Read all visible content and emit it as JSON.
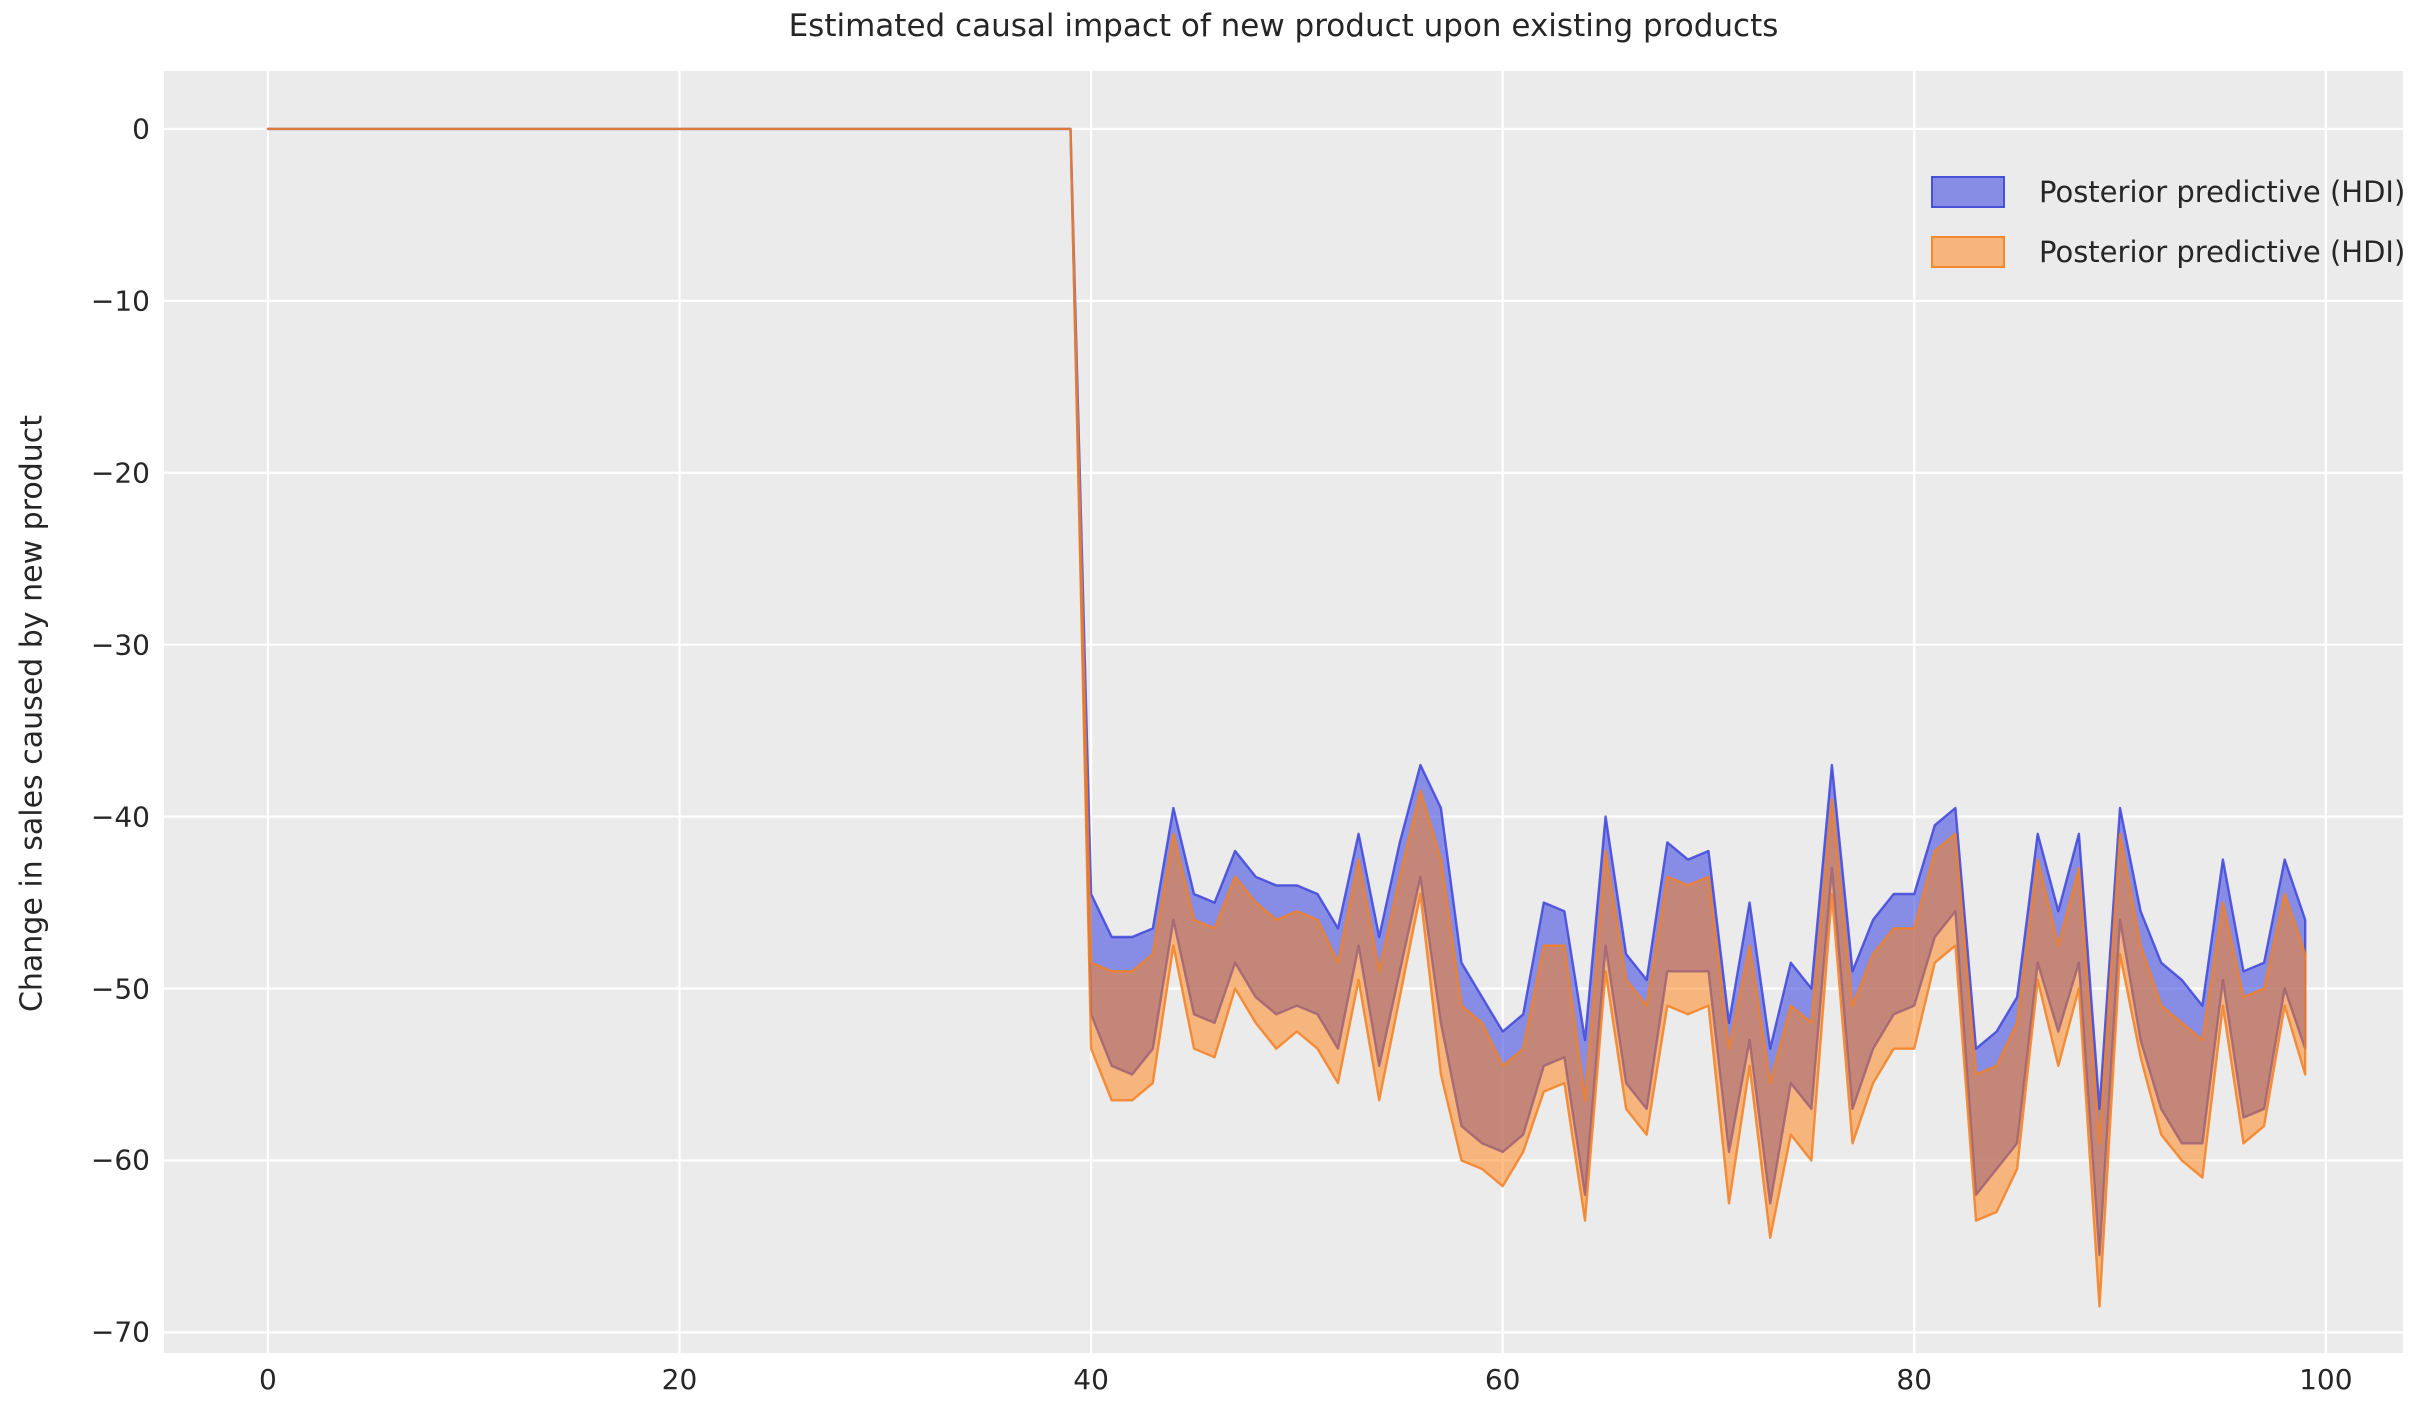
{
  "chart_data": {
    "type": "area",
    "title": "Estimated causal impact of new product upon existing products",
    "ylabel": "Change in sales caused by new product",
    "xlabel": "",
    "grid": true,
    "legend_position": "upper right",
    "legend": [
      {
        "label": "Posterior predictive (HDI)",
        "series": "blue_hdi"
      },
      {
        "label": "Posterior predictive (HDI)",
        "series": "orange_hdi"
      }
    ],
    "colors": {
      "axes_background": "#ebebeb",
      "grid": "#ffffff",
      "text": "#262626",
      "blue_fill": "rgba(74,82,224,0.62)",
      "blue_edge": "rgba(62,69,218,0.85)",
      "orange_fill": "rgba(255,127,14,0.5)",
      "orange_edge": "rgba(243,128,35,0.85)"
    },
    "xlim": [
      -5.05,
      103.75
    ],
    "ylim": [
      -71.2,
      3.37
    ],
    "x_ticks": [
      {
        "value": 0,
        "label": "0"
      },
      {
        "value": 20,
        "label": "20"
      },
      {
        "value": 40,
        "label": "40"
      },
      {
        "value": 60,
        "label": "60"
      },
      {
        "value": 80,
        "label": "80"
      },
      {
        "value": 100,
        "label": "100"
      }
    ],
    "y_ticks": [
      {
        "value": 0,
        "label": "0"
      },
      {
        "value": -10,
        "label": "−10"
      },
      {
        "value": -20,
        "label": "−20"
      },
      {
        "value": -30,
        "label": "−30"
      },
      {
        "value": -40,
        "label": "−40"
      },
      {
        "value": -50,
        "label": "−50"
      },
      {
        "value": -60,
        "label": "−60"
      },
      {
        "value": -70,
        "label": "−70"
      }
    ],
    "pre_period": {
      "x_start": 0,
      "x_end": 39,
      "value": 0
    },
    "post_period": {
      "x_start": 40,
      "x": [
        40,
        41,
        42,
        43,
        44,
        45,
        46,
        47,
        48,
        49,
        50,
        51,
        52,
        53,
        54,
        55,
        56,
        57,
        58,
        59,
        60,
        61,
        62,
        63,
        64,
        65,
        66,
        67,
        68,
        69,
        70,
        71,
        72,
        73,
        74,
        75,
        76,
        77,
        78,
        79,
        80,
        81,
        82,
        83,
        84,
        85,
        86,
        87,
        88,
        89,
        90,
        91,
        92,
        93,
        94,
        95,
        96,
        97,
        98,
        99
      ],
      "blue_hdi_upper": [
        -44.5,
        -47,
        -47,
        -46.5,
        -39.5,
        -44.5,
        -45,
        -42,
        -43.5,
        -44,
        -44,
        -44.5,
        -46.5,
        -41,
        -47,
        -41.5,
        -37,
        -39.5,
        -48.5,
        -50.5,
        -52.5,
        -51.5,
        -45,
        -45.5,
        -53,
        -40,
        -48,
        -49.5,
        -41.5,
        -42.5,
        -42,
        -52,
        -45,
        -53.5,
        -48.5,
        -50,
        -37,
        -49,
        -46,
        -44.5,
        -44.5,
        -40.5,
        -39.5,
        -53.5,
        -52.5,
        -50.5,
        -41,
        -45.5,
        -41,
        -57,
        -39.5,
        -45.5,
        -48.5,
        -49.5,
        -51,
        -42.5,
        -49,
        -48.5,
        -42.5,
        -46
      ],
      "blue_hdi_lower": [
        -51.5,
        -54.5,
        -55,
        -53.5,
        -46,
        -51.5,
        -52,
        -48.5,
        -50.5,
        -51.5,
        -51,
        -51.5,
        -53.5,
        -47.5,
        -54.5,
        -49,
        -43.5,
        -52,
        -58,
        -59,
        -59.5,
        -58.5,
        -54.5,
        -54,
        -62,
        -47.5,
        -55.5,
        -57,
        -49,
        -49,
        -49,
        -59.5,
        -53,
        -62.5,
        -55.5,
        -57,
        -43,
        -57,
        -53.5,
        -51.5,
        -51,
        -47,
        -45.5,
        -62,
        -60.5,
        -59,
        -48.5,
        -52.5,
        -48.5,
        -65.5,
        -46,
        -53,
        -57,
        -59,
        -59,
        -49.5,
        -57.5,
        -57,
        -50,
        -53.5
      ],
      "orange_hdi_upper": [
        -48.5,
        -49,
        -49,
        -48,
        -41,
        -46,
        -46.5,
        -43.5,
        -45,
        -46,
        -45.5,
        -46,
        -48.5,
        -42.5,
        -49,
        -43.5,
        -38.5,
        -42.5,
        -51,
        -52,
        -54.5,
        -53.5,
        -47.5,
        -47.5,
        -56.5,
        -42,
        -49.5,
        -51,
        -43.5,
        -44,
        -43.5,
        -53.5,
        -47.5,
        -55.5,
        -51,
        -52,
        -39,
        -51,
        -48,
        -46.5,
        -46.5,
        -42,
        -41,
        -55,
        -54.5,
        -52,
        -42.5,
        -47.5,
        -43,
        -59,
        -41,
        -47.5,
        -51,
        -52,
        -53,
        -45,
        -50.5,
        -50,
        -44.5,
        -48
      ],
      "orange_hdi_lower": [
        -53.5,
        -56.5,
        -56.5,
        -55.5,
        -47.5,
        -53.5,
        -54,
        -50,
        -52,
        -53.5,
        -52.5,
        -53.5,
        -55.5,
        -49.5,
        -56.5,
        -50.5,
        -44.5,
        -55,
        -60,
        -60.5,
        -61.5,
        -59.5,
        -56,
        -55.5,
        -63.5,
        -49,
        -57,
        -58.5,
        -51,
        -51.5,
        -51,
        -62.5,
        -54.5,
        -64.5,
        -58.5,
        -60,
        -44.5,
        -59,
        -55.5,
        -53.5,
        -53.5,
        -48.5,
        -47.5,
        -63.5,
        -63,
        -60.5,
        -49.5,
        -54.5,
        -50,
        -68.5,
        -48,
        -54,
        -58.5,
        -60,
        -61,
        -51,
        -59,
        -58,
        -51,
        -55
      ]
    }
  }
}
